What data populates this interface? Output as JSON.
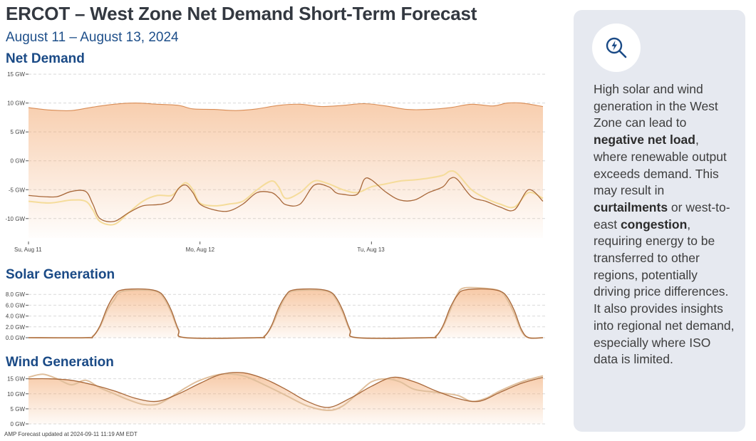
{
  "title": "ERCOT – West Zone Net Demand Short-Term Forecast",
  "date_range": "August 11 – August 13, 2024",
  "footer": "AMP Forecast updated at 2024-09-11 11:19 AM EDT",
  "colors": {
    "forecast_line": "#a8683a",
    "alt_line": "#e0bf9c",
    "area_fill": "#f2a66c",
    "net_alt_line": "#f5dc9a",
    "title_blue": "#1a4a86"
  },
  "insight": {
    "icon": "magnifier-lightning-icon",
    "parts": [
      {
        "text": "High solar and wind generation in the West Zone can lead to ",
        "bold": false
      },
      {
        "text": "negative net load",
        "bold": true
      },
      {
        "text": ", where renewable output exceeds demand. This may result in ",
        "bold": false
      },
      {
        "text": "curtailments",
        "bold": true
      },
      {
        "text": " or west-to-east ",
        "bold": false
      },
      {
        "text": "congestion",
        "bold": true
      },
      {
        "text": ", requiring energy to be transferred to other regions, potentially driving price differences. It also provides insights into regional net demand, especially where ISO data is limited.",
        "bold": false
      }
    ]
  },
  "chart_data": [
    {
      "id": "net-demand",
      "type": "area",
      "title": "Net Demand",
      "xlabel": "",
      "ylabel": "",
      "x_tick_labels": [
        {
          "label": "Su, Aug 11",
          "hour": 0
        },
        {
          "label": "Mo, Aug 12",
          "hour": 24
        },
        {
          "label": "Tu, Aug 13",
          "hour": 48
        }
      ],
      "x_range_hours": [
        0,
        72
      ],
      "ylim": [
        -12,
        16
      ],
      "y_ticks": [
        15,
        10,
        5,
        0,
        -5,
        -10
      ],
      "y_tick_labels": [
        "15 GW",
        "10 GW",
        "5 GW",
        "0 GW",
        "-5 GW",
        "-10 GW"
      ],
      "grid": true,
      "series": [
        {
          "role": "upper-band",
          "style": "filled-area",
          "x": [
            0,
            3,
            6,
            9,
            12,
            15,
            18,
            21,
            23,
            26,
            29,
            32,
            35,
            38,
            41,
            44,
            47,
            50,
            53,
            56,
            59,
            62,
            65,
            67,
            69,
            72
          ],
          "values": [
            9.2,
            8.8,
            8.7,
            9.3,
            9.8,
            10.0,
            9.8,
            9.6,
            9.0,
            8.9,
            8.7,
            9.0,
            9.6,
            9.8,
            9.4,
            9.6,
            9.9,
            9.5,
            8.9,
            8.9,
            9.2,
            9.8,
            9.5,
            10.0,
            10.0,
            9.4
          ]
        },
        {
          "role": "forecast",
          "style": "line",
          "x": [
            0,
            2,
            4,
            6,
            8,
            9,
            10,
            12,
            14,
            16,
            18,
            19,
            20,
            21,
            22,
            23,
            24,
            26,
            28,
            30,
            32,
            34,
            35,
            36,
            38,
            40,
            42,
            43,
            44,
            46,
            47,
            48,
            50,
            52,
            54,
            56,
            58,
            59,
            60,
            62,
            64,
            66,
            68,
            70,
            72
          ],
          "values": [
            -6.0,
            -6.2,
            -6.2,
            -5.3,
            -5.3,
            -7.5,
            -10.0,
            -10.5,
            -9.0,
            -7.8,
            -7.6,
            -7.4,
            -6.8,
            -4.8,
            -4.2,
            -5.5,
            -7.5,
            -8.5,
            -8.7,
            -7.5,
            -5.5,
            -5.5,
            -6.4,
            -7.6,
            -7.5,
            -4.2,
            -4.5,
            -5.5,
            -5.8,
            -5.8,
            -3.2,
            -3.3,
            -5.4,
            -6.8,
            -6.8,
            -5.5,
            -4.5,
            -3.1,
            -3.2,
            -6.2,
            -7.0,
            -8.0,
            -8.5,
            -5.0,
            -7.0
          ]
        },
        {
          "role": "alternate-forecast",
          "style": "line",
          "x": [
            0,
            3,
            6,
            8,
            9,
            10,
            12,
            14,
            16,
            18,
            20,
            21,
            22,
            23,
            24,
            26,
            28,
            30,
            32,
            34,
            35,
            36,
            38,
            40,
            42,
            44,
            46,
            48,
            50,
            52,
            54,
            56,
            58,
            59,
            60,
            62,
            64,
            66,
            68,
            70,
            72
          ],
          "values": [
            -7.0,
            -7.3,
            -6.8,
            -7.0,
            -8.5,
            -10.5,
            -11.0,
            -9.0,
            -7.0,
            -6.0,
            -6.0,
            -4.8,
            -3.8,
            -5.0,
            -7.3,
            -7.8,
            -7.5,
            -7.0,
            -5.0,
            -3.5,
            -4.5,
            -6.5,
            -5.5,
            -3.5,
            -4.0,
            -5.0,
            -5.5,
            -4.5,
            -4.0,
            -3.5,
            -3.3,
            -3.0,
            -2.5,
            -1.8,
            -2.2,
            -5.0,
            -6.5,
            -7.5,
            -8.0,
            -5.5,
            -6.5
          ]
        }
      ]
    },
    {
      "id": "solar-generation",
      "type": "area",
      "title": "Solar Generation",
      "xlabel": "",
      "ylabel": "",
      "x_range_hours": [
        0,
        72
      ],
      "ylim": [
        0,
        10
      ],
      "y_ticks": [
        8,
        6,
        4,
        2,
        0
      ],
      "y_tick_labels": [
        "8.0 GW",
        "6.0 GW",
        "4.0 GW",
        "2.0 GW",
        "0.0 GW"
      ],
      "grid": true,
      "series": [
        {
          "role": "forecast",
          "style": "filled-line",
          "x": [
            0,
            8,
            9,
            10,
            11,
            12,
            13,
            16,
            18,
            19,
            20,
            21,
            22,
            32,
            33,
            34,
            35,
            36,
            37,
            40,
            42,
            43,
            44,
            45,
            46,
            56,
            57,
            58,
            59,
            60,
            61,
            64,
            66,
            67,
            68,
            69,
            70,
            72
          ],
          "values": [
            0,
            0,
            0.2,
            2.2,
            5.5,
            7.8,
            8.8,
            9.0,
            8.6,
            7.5,
            5.0,
            1.5,
            0,
            0,
            0.2,
            2.2,
            5.5,
            7.8,
            8.8,
            9.0,
            8.6,
            7.5,
            5.0,
            1.5,
            0,
            0,
            0.2,
            2.2,
            5.5,
            7.8,
            8.8,
            9.0,
            8.6,
            7.5,
            5.0,
            1.5,
            0,
            0
          ]
        },
        {
          "role": "alternate-forecast",
          "style": "line",
          "x": [
            0,
            8,
            9,
            10,
            11,
            12,
            13,
            16,
            18,
            19,
            20,
            21,
            22,
            32,
            33,
            34,
            35,
            36,
            37,
            40,
            42,
            43,
            44,
            45,
            46,
            56,
            57,
            58,
            59,
            60,
            61,
            64,
            66,
            67,
            68,
            69,
            70,
            72
          ],
          "values": [
            0,
            0,
            0.3,
            2.0,
            5.0,
            7.0,
            8.5,
            8.8,
            8.5,
            7.2,
            4.6,
            1.3,
            0,
            0,
            0.3,
            2.0,
            5.0,
            7.6,
            8.6,
            8.8,
            8.5,
            7.2,
            4.6,
            1.3,
            0,
            0,
            0.3,
            2.0,
            5.0,
            8.0,
            9.2,
            9.1,
            8.6,
            7.0,
            4.4,
            1.2,
            0,
            0
          ]
        }
      ]
    },
    {
      "id": "wind-generation",
      "type": "area",
      "title": "Wind Generation",
      "xlabel": "",
      "ylabel": "",
      "x_range_hours": [
        0,
        72
      ],
      "ylim": [
        0,
        18
      ],
      "y_ticks": [
        15,
        10,
        5,
        0
      ],
      "y_tick_labels": [
        "15 GW",
        "10 GW",
        "5 GW",
        "0 GW"
      ],
      "grid": true,
      "series": [
        {
          "role": "forecast",
          "style": "filled-line",
          "x": [
            0,
            3,
            6,
            9,
            12,
            15,
            18,
            21,
            24,
            27,
            30,
            33,
            36,
            39,
            42,
            45,
            48,
            51,
            54,
            57,
            60,
            63,
            66,
            69,
            72
          ],
          "values": [
            15.0,
            15.0,
            14.5,
            13.0,
            11.0,
            8.5,
            7.5,
            10.0,
            13.5,
            16.5,
            17.0,
            15.0,
            11.5,
            7.5,
            5.5,
            8.5,
            12.5,
            15.5,
            14.0,
            11.0,
            8.5,
            7.5,
            10.5,
            13.5,
            15.5
          ]
        },
        {
          "role": "alternate-forecast",
          "style": "line",
          "x": [
            0,
            2,
            4,
            6,
            8,
            10,
            12,
            14,
            16,
            18,
            20,
            22,
            24,
            27,
            30,
            33,
            36,
            39,
            42,
            44,
            46,
            48,
            50,
            52,
            54,
            57,
            60,
            62,
            64,
            66,
            69,
            72
          ],
          "values": [
            15.5,
            16.5,
            15.0,
            13.0,
            14.5,
            12.0,
            10.0,
            8.0,
            6.5,
            6.5,
            9.0,
            12.0,
            14.5,
            16.5,
            16.0,
            13.0,
            9.5,
            6.0,
            4.5,
            6.0,
            10.0,
            14.0,
            15.0,
            14.0,
            11.5,
            10.5,
            9.5,
            7.5,
            8.5,
            11.0,
            14.0,
            16.0
          ]
        }
      ]
    }
  ]
}
